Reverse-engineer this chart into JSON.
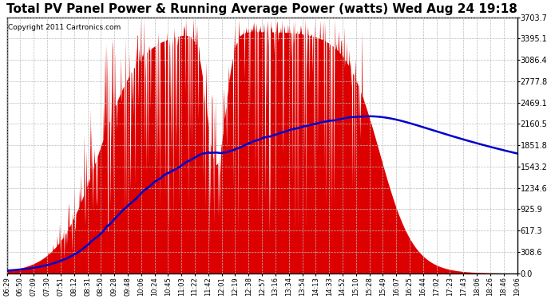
{
  "title": "Total PV Panel Power & Running Average Power (watts) Wed Aug 24 19:18",
  "copyright": "Copyright 2011 Cartronics.com",
  "ymax": 3703.7,
  "yticks": [
    0.0,
    308.6,
    617.3,
    925.9,
    1234.6,
    1543.2,
    1851.8,
    2160.5,
    2469.1,
    2777.8,
    3086.4,
    3395.1,
    3703.7
  ],
  "xlabels": [
    "06:29",
    "06:50",
    "07:09",
    "07:30",
    "07:51",
    "08:12",
    "08:31",
    "08:50",
    "09:28",
    "09:48",
    "10:06",
    "10:24",
    "10:45",
    "11:03",
    "11:22",
    "11:42",
    "12:01",
    "12:19",
    "12:38",
    "12:57",
    "13:16",
    "13:34",
    "13:54",
    "14:13",
    "14:33",
    "14:52",
    "15:10",
    "15:28",
    "15:49",
    "16:07",
    "16:25",
    "16:44",
    "17:02",
    "17:23",
    "17:43",
    "18:06",
    "18:26",
    "18:46",
    "19:06"
  ],
  "background_color": "#ffffff",
  "fill_color": "#dd0000",
  "line_color": "#0000cc",
  "grid_color": "#bbbbbb",
  "title_fontsize": 11,
  "copyright_fontsize": 6.5
}
